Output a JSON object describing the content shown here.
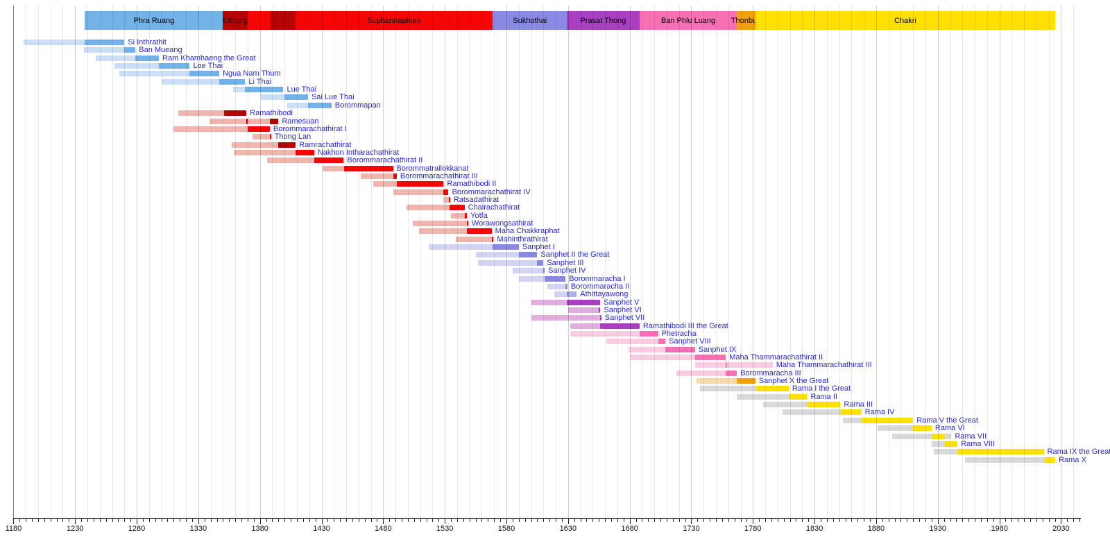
{
  "chart_data": {
    "type": "timeline",
    "description": "Timeline of Thai monarchs with dynasty band, lifespan bars (pale) and reign bars (solid)",
    "axis": {
      "start_year": 1180,
      "end_year": 2046,
      "gridline_interval": 10,
      "tick_interval": 5,
      "label_interval": 50,
      "tick_labels": [
        1180,
        1230,
        1280,
        1330,
        1380,
        1430,
        1480,
        1530,
        1580,
        1630,
        1680,
        1730,
        1780,
        1830,
        1880,
        1930,
        1980,
        2030
      ]
    },
    "colors": {
      "background": "#ffffff",
      "monarch_label_text": "#2a2ace",
      "band_label_text": "#000000",
      "axis_text": "#111111",
      "phra_ruang": {
        "life": "#cadef5",
        "reign": "#73b2e8"
      },
      "uthong": {
        "life": "#f0b5ad",
        "reign": "#b40404"
      },
      "suphannaphum": {
        "life": "#f0b5ad",
        "reign": "#f70404"
      },
      "sukhothai": {
        "life": "#d3d3f3",
        "reign": "#8989e3",
        "post": "#aeaee8"
      },
      "prasat_thong": {
        "life": "#dfaede",
        "reign": "#ab3fc3"
      },
      "ban_phlu_luang": {
        "life": "#f9cce2",
        "reign": "#f770b5"
      },
      "thonburi": {
        "life": "#f8d9a9",
        "reign": "#f1a00e"
      },
      "chakri": {
        "life": "#d9d9d9",
        "reign": "#ffe000"
      }
    },
    "dynasty_band": [
      {
        "label": "Phra Ruang",
        "start": 1238,
        "end": 1350,
        "dynasty": "phra_ruang"
      },
      {
        "label": "Uthong",
        "start": 1350,
        "end": 1370,
        "dynasty": "uthong"
      },
      {
        "label": "",
        "start": 1370,
        "end": 1388,
        "dynasty": "suphannaphum"
      },
      {
        "label": "",
        "start": 1388,
        "end": 1409,
        "dynasty": "uthong"
      },
      {
        "label": "Suphannaphum",
        "start": 1409,
        "end": 1569,
        "dynasty": "suphannaphum"
      },
      {
        "label": "Sukhothai",
        "start": 1569,
        "end": 1629,
        "dynasty": "sukhothai"
      },
      {
        "label": "Prasat Thong",
        "start": 1629,
        "end": 1688,
        "dynasty": "prasat_thong"
      },
      {
        "label": "Ban Phlu Luang",
        "start": 1688,
        "end": 1767,
        "dynasty": "ban_phlu_luang"
      },
      {
        "label": "Thonburi",
        "start": 1767,
        "end": 1782,
        "dynasty": "thonburi"
      },
      {
        "label": "Chakri",
        "start": 1782,
        "end": 2025.3,
        "dynasty": "chakri"
      }
    ],
    "monarchs": [
      {
        "name": "Si Inthrathit",
        "dynasty": "phra_ruang",
        "life": [
          1188,
          1270
        ],
        "reigns": [
          [
            1238,
            1270
          ]
        ]
      },
      {
        "name": "Ban Mueang",
        "dynasty": "phra_ruang",
        "life": [
          1237,
          1279
        ],
        "reigns": [
          [
            1270,
            1279
          ]
        ]
      },
      {
        "name": "Ram Khamhaeng the Great",
        "dynasty": "phra_ruang",
        "life": [
          1247,
          1298
        ],
        "reigns": [
          [
            1279,
            1298
          ]
        ]
      },
      {
        "name": "Loe Thai",
        "dynasty": "phra_ruang",
        "life": [
          1262,
          1323
        ],
        "reigns": [
          [
            1298,
            1323
          ]
        ]
      },
      {
        "name": "Ngua Nam Thum",
        "dynasty": "phra_ruang",
        "life": [
          1266,
          1347
        ],
        "reigns": [
          [
            1323,
            1347
          ]
        ]
      },
      {
        "name": "Li Thai",
        "dynasty": "phra_ruang",
        "life": [
          1300,
          1368
        ],
        "reigns": [
          [
            1347,
            1368
          ]
        ]
      },
      {
        "name": "Lue Thai",
        "dynasty": "phra_ruang",
        "life": [
          1358,
          1399
        ],
        "reigns": [
          [
            1368,
            1399
          ]
        ]
      },
      {
        "name": "Sai Lue Thai",
        "dynasty": "phra_ruang",
        "life": [
          1381,
          1419
        ],
        "reigns": [
          [
            1400,
            1419
          ]
        ]
      },
      {
        "name": "Borommapan",
        "dynasty": "phra_ruang",
        "life": [
          1402,
          1438
        ],
        "reigns": [
          [
            1419,
            1438
          ]
        ]
      },
      {
        "name": "Ramathibodi",
        "dynasty": "uthong",
        "life": [
          1314,
          1369
        ],
        "reigns": [
          [
            1351,
            1369
          ]
        ]
      },
      {
        "name": "Ramesuan",
        "dynasty": "uthong",
        "life": [
          1339,
          1395
        ],
        "reigns": [
          [
            1369,
            1370.3
          ],
          [
            1388,
            1395
          ]
        ]
      },
      {
        "name": "Borommarachathirat I",
        "dynasty": "suphannaphum",
        "life": [
          1310,
          1388
        ],
        "reigns": [
          [
            1370,
            1388
          ]
        ]
      },
      {
        "name": "Thong Lan",
        "dynasty": "suphannaphum",
        "life": [
          1374,
          1388
        ],
        "reigns": [
          [
            1388,
            1389
          ]
        ]
      },
      {
        "name": "Ramrachathirat",
        "dynasty": "uthong",
        "life": [
          1357,
          1409
        ],
        "reigns": [
          [
            1395,
            1409
          ]
        ]
      },
      {
        "name": "Nakhon Intharachathirat",
        "dynasty": "suphannaphum",
        "life": [
          1359,
          1424
        ],
        "reigns": [
          [
            1409,
            1424
          ]
        ]
      },
      {
        "name": "Borommarachathirat II",
        "dynasty": "suphannaphum",
        "life": [
          1386,
          1448
        ],
        "reigns": [
          [
            1424,
            1448
          ]
        ]
      },
      {
        "name": "Borommatrailokkanat",
        "dynasty": "suphannaphum",
        "life": [
          1431,
          1488
        ],
        "reigns": [
          [
            1448,
            1488
          ]
        ]
      },
      {
        "name": "Borommarachathirat III",
        "dynasty": "suphannaphum",
        "life": [
          1462,
          1491
        ],
        "reigns": [
          [
            1488,
            1491
          ]
        ]
      },
      {
        "name": "Ramathibodi II",
        "dynasty": "suphannaphum",
        "life": [
          1472,
          1529
        ],
        "reigns": [
          [
            1491,
            1529
          ]
        ]
      },
      {
        "name": "Borommarachathirat IV",
        "dynasty": "suphannaphum",
        "life": [
          1488,
          1533
        ],
        "reigns": [
          [
            1529,
            1533
          ]
        ]
      },
      {
        "name": "Ratsadathirat",
        "dynasty": "suphannaphum",
        "life": [
          1529,
          1534
        ],
        "reigns": [
          [
            1533,
            1534.3
          ]
        ]
      },
      {
        "name": "Chairachathirat",
        "dynasty": "suphannaphum",
        "life": [
          1499,
          1546
        ],
        "reigns": [
          [
            1534,
            1546
          ]
        ]
      },
      {
        "name": "Yotfa",
        "dynasty": "suphannaphum",
        "life": [
          1535,
          1548
        ],
        "reigns": [
          [
            1546,
            1548
          ]
        ]
      },
      {
        "name": "Worawongsathirat",
        "dynasty": "suphannaphum",
        "life": [
          1504,
          1548
        ],
        "reigns": [
          [
            1548,
            1549
          ]
        ]
      },
      {
        "name": "Maha Chakkraphat",
        "dynasty": "suphannaphum",
        "life": [
          1509,
          1568
        ],
        "reigns": [
          [
            1548,
            1568
          ]
        ]
      },
      {
        "name": "Mahinthrathirat",
        "dynasty": "suphannaphum",
        "life": [
          1539,
          1569
        ],
        "reigns": [
          [
            1568,
            1569.5
          ]
        ]
      },
      {
        "name": "Sanphet I",
        "dynasty": "sukhothai",
        "life": [
          1517,
          1590
        ],
        "reigns": [
          [
            1569,
            1590
          ]
        ]
      },
      {
        "name": "Sanphet II the Great",
        "dynasty": "sukhothai",
        "life": [
          1555,
          1605
        ],
        "reigns": [
          [
            1590,
            1605
          ]
        ]
      },
      {
        "name": "Sanphet III",
        "dynasty": "sukhothai",
        "life": [
          1557,
          1610
        ],
        "reigns": [
          [
            1605,
            1610
          ]
        ]
      },
      {
        "name": "Sanphet IV",
        "dynasty": "sukhothai",
        "life": [
          1585,
          1611
        ],
        "reigns": [
          [
            1610,
            1611
          ]
        ]
      },
      {
        "name": "Borommaracha I",
        "dynasty": "sukhothai",
        "life": [
          1590,
          1628
        ],
        "reigns": [
          [
            1611,
            1628
          ]
        ]
      },
      {
        "name": "Borommaracha II",
        "dynasty": "sukhothai",
        "life": [
          1613,
          1629
        ],
        "reigns": [
          [
            1628,
            1629.5
          ]
        ]
      },
      {
        "name": "Athittayawong",
        "dynasty": "sukhothai",
        "life": [
          1619,
          1637
        ],
        "reigns": [
          [
            1629,
            1630.2
          ]
        ],
        "post": [
          1630,
          1637
        ]
      },
      {
        "name": "Sanphet V",
        "dynasty": "prasat_thong",
        "life": [
          1600,
          1656
        ],
        "reigns": [
          [
            1629,
            1656
          ]
        ]
      },
      {
        "name": "Sanphet VI",
        "dynasty": "prasat_thong",
        "life": [
          1630,
          1656
        ],
        "reigns": [
          [
            1655,
            1656.2
          ]
        ]
      },
      {
        "name": "Sanphet VII",
        "dynasty": "prasat_thong",
        "life": [
          1600,
          1657
        ],
        "reigns": [
          [
            1656,
            1657
          ]
        ]
      },
      {
        "name": "Ramathibodi III the Great",
        "dynasty": "prasat_thong",
        "life": [
          1632,
          1688
        ],
        "reigns": [
          [
            1656,
            1688
          ]
        ]
      },
      {
        "name": "Phetracha",
        "dynasty": "ban_phlu_luang",
        "life": [
          1632,
          1703
        ],
        "reigns": [
          [
            1688,
            1703
          ]
        ]
      },
      {
        "name": "Sanphet VIII",
        "dynasty": "ban_phlu_luang",
        "life": [
          1661,
          1709
        ],
        "reigns": [
          [
            1703,
            1709
          ]
        ]
      },
      {
        "name": "Sanphet IX",
        "dynasty": "ban_phlu_luang",
        "life": [
          1679,
          1733
        ],
        "reigns": [
          [
            1709,
            1733
          ]
        ]
      },
      {
        "name": "Maha Thammarachathirat II",
        "dynasty": "ban_phlu_luang",
        "life": [
          1680,
          1758
        ],
        "reigns": [
          [
            1733,
            1758
          ]
        ]
      },
      {
        "name": "Maha Thammarachathirat III",
        "dynasty": "ban_phlu_luang",
        "life": [
          1733,
          1796
        ],
        "reigns": [
          [
            1758,
            1759
          ]
        ]
      },
      {
        "name": "Borommaracha III",
        "dynasty": "ban_phlu_luang",
        "life": [
          1718,
          1767
        ],
        "reigns": [
          [
            1758,
            1767
          ]
        ]
      },
      {
        "name": "Sanphet X the Great",
        "dynasty": "thonburi",
        "life": [
          1734,
          1782
        ],
        "reigns": [
          [
            1767,
            1782
          ]
        ]
      },
      {
        "name": "Rama I the Great",
        "dynasty": "chakri",
        "life": [
          1737,
          1809
        ],
        "reigns": [
          [
            1782,
            1809
          ]
        ]
      },
      {
        "name": "Rama II",
        "dynasty": "chakri",
        "life": [
          1767,
          1824
        ],
        "reigns": [
          [
            1809,
            1824
          ]
        ]
      },
      {
        "name": "Rama III",
        "dynasty": "chakri",
        "life": [
          1788,
          1851
        ],
        "reigns": [
          [
            1824,
            1851
          ]
        ]
      },
      {
        "name": "Rama IV",
        "dynasty": "chakri",
        "life": [
          1804,
          1868
        ],
        "reigns": [
          [
            1851,
            1868
          ]
        ]
      },
      {
        "name": "Rama V the Great",
        "dynasty": "chakri",
        "life": [
          1853,
          1910
        ],
        "reigns": [
          [
            1868,
            1910
          ]
        ]
      },
      {
        "name": "Rama VI",
        "dynasty": "chakri",
        "life": [
          1881,
          1925
        ],
        "reigns": [
          [
            1910,
            1925
          ]
        ]
      },
      {
        "name": "Rama VII",
        "dynasty": "chakri",
        "life": [
          1893,
          1941
        ],
        "reigns": [
          [
            1925,
            1935
          ]
        ]
      },
      {
        "name": "Rama VIII",
        "dynasty": "chakri",
        "life": [
          1925,
          1946
        ],
        "reigns": [
          [
            1935,
            1946
          ]
        ]
      },
      {
        "name": "Rama IX the Great",
        "dynasty": "chakri",
        "life": [
          1927,
          2016
        ],
        "reigns": [
          [
            1946,
            2016
          ]
        ]
      },
      {
        "name": "Rama X",
        "dynasty": "chakri",
        "life": [
          1952,
          2025.3
        ],
        "reigns": [
          [
            2016,
            2025.3
          ]
        ]
      }
    ]
  }
}
